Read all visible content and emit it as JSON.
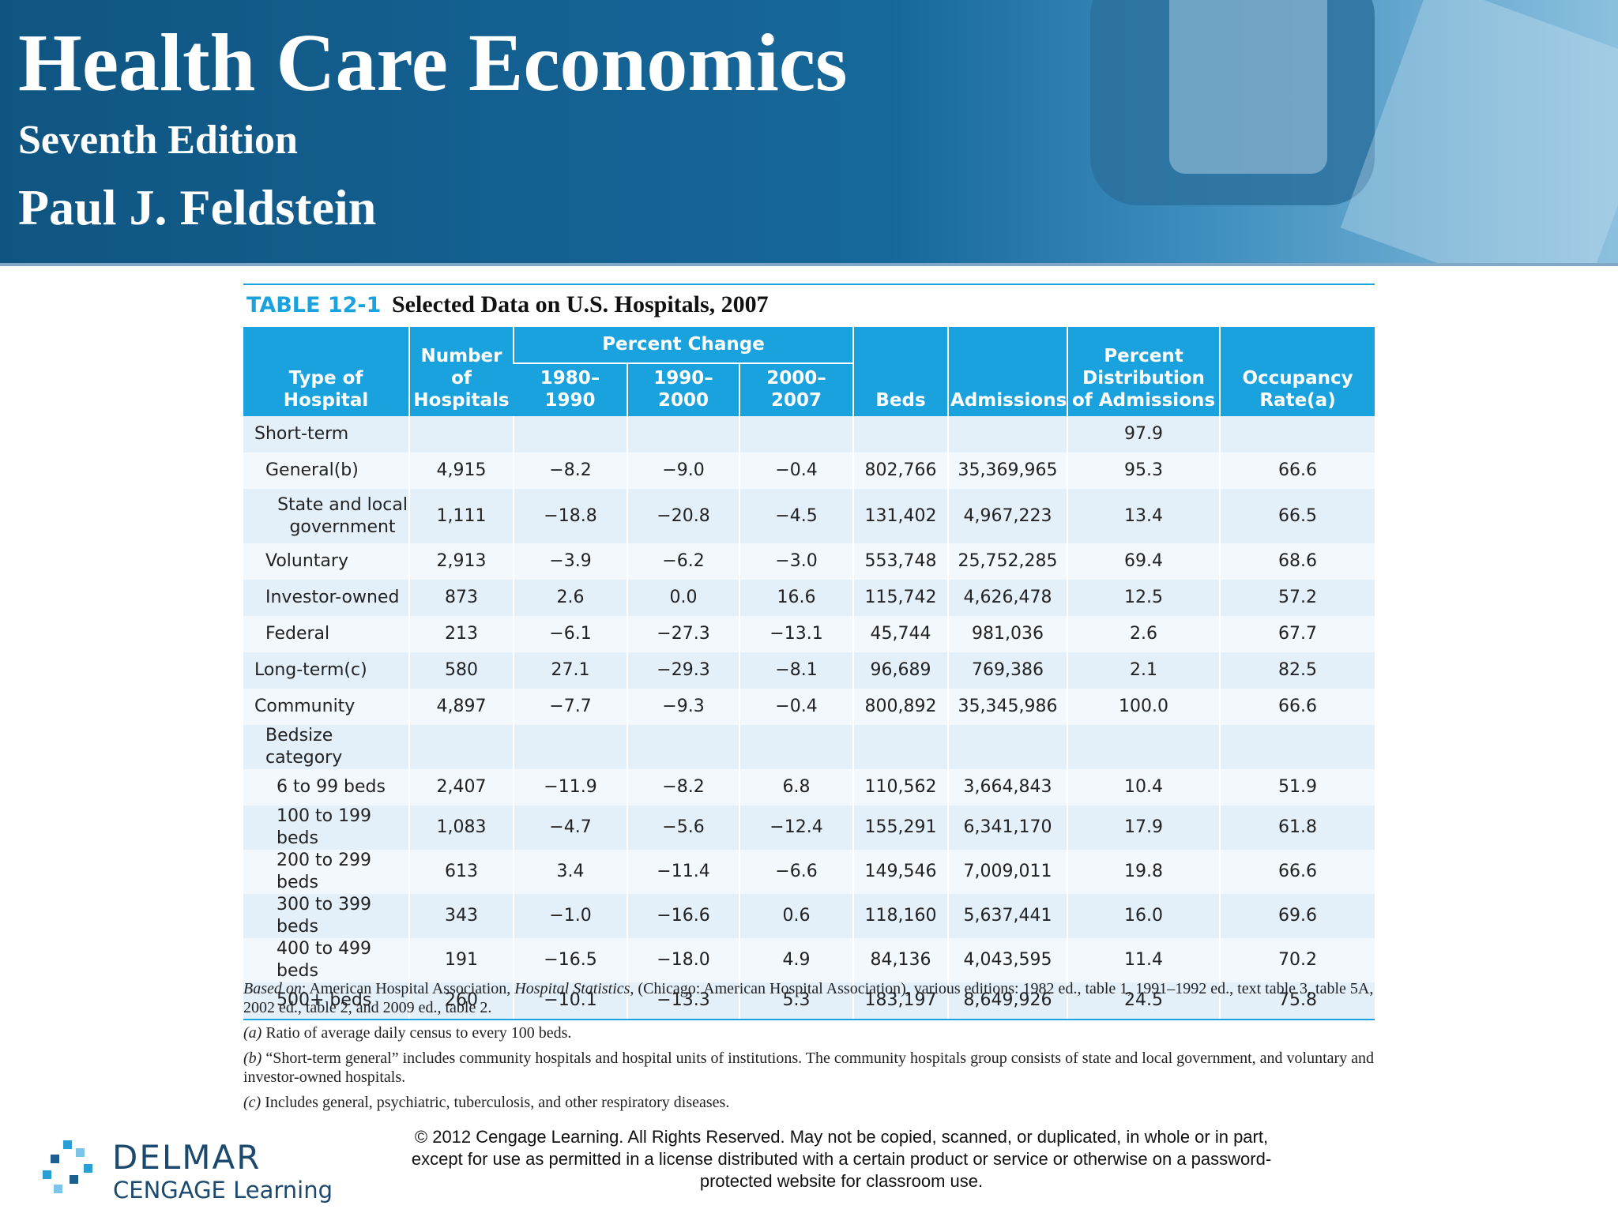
{
  "header": {
    "title": "Health Care Economics",
    "edition": "Seventh Edition",
    "author": "Paul J. Feldstein"
  },
  "table": {
    "label": "TABLE 12-1",
    "caption": "Selected Data on U.S. Hospitals, 2007",
    "columns": {
      "type": "Type of\nHospital",
      "number": "Number\nof\nHospitals",
      "group": "Percent Change",
      "periods": [
        "1980–1990",
        "1990–2000",
        "2000–2007"
      ],
      "beds": "Beds",
      "admissions": "Admissions",
      "distribution": "Percent\nDistribution\nof Admissions",
      "occupancy": "Occupancy\nRate(a)"
    },
    "rows": [
      {
        "label": "Short-term",
        "cells": [
          null,
          null,
          null,
          null,
          null,
          null,
          "97.9",
          null
        ]
      },
      {
        "label": "General(b)",
        "cells": [
          "4,915",
          "−8.2",
          "−9.0",
          "−0.4",
          "802,766",
          "35,369,965",
          "95.3",
          "66.6"
        ]
      },
      {
        "label": "State and local\ngovernment",
        "cells": [
          "1,111",
          "−18.8",
          "−20.8",
          "−4.5",
          "131,402",
          "4,967,223",
          "13.4",
          "66.5"
        ]
      },
      {
        "label": "Voluntary",
        "cells": [
          "2,913",
          "−3.9",
          "−6.2",
          "−3.0",
          "553,748",
          "25,752,285",
          "69.4",
          "68.6"
        ]
      },
      {
        "label": "Investor-owned",
        "cells": [
          "873",
          "2.6",
          "0.0",
          "16.6",
          "115,742",
          "4,626,478",
          "12.5",
          "57.2"
        ]
      },
      {
        "label": "Federal",
        "cells": [
          "213",
          "−6.1",
          "−27.3",
          "−13.1",
          "45,744",
          "981,036",
          "2.6",
          "67.7"
        ]
      },
      {
        "label": "Long-term(c)",
        "cells": [
          "580",
          "27.1",
          "−29.3",
          "−8.1",
          "96,689",
          "769,386",
          "2.1",
          "82.5"
        ]
      },
      {
        "label": "Community",
        "cells": [
          "4,897",
          "−7.7",
          "−9.3",
          "−0.4",
          "800,892",
          "35,345,986",
          "100.0",
          "66.6"
        ]
      },
      {
        "label": "Bedsize category",
        "cells": [
          null,
          null,
          null,
          null,
          null,
          null,
          null,
          null
        ]
      },
      {
        "label": "6 to 99 beds",
        "cells": [
          "2,407",
          "−11.9",
          "−8.2",
          "6.8",
          "110,562",
          "3,664,843",
          "10.4",
          "51.9"
        ]
      },
      {
        "label": "100 to 199 beds",
        "cells": [
          "1,083",
          "−4.7",
          "−5.6",
          "−12.4",
          "155,291",
          "6,341,170",
          "17.9",
          "61.8"
        ]
      },
      {
        "label": "200 to 299 beds",
        "cells": [
          "613",
          "3.4",
          "−11.4",
          "−6.6",
          "149,546",
          "7,009,011",
          "19.8",
          "66.6"
        ]
      },
      {
        "label": "300 to 399 beds",
        "cells": [
          "343",
          "−1.0",
          "−16.6",
          "0.6",
          "118,160",
          "5,637,441",
          "16.0",
          "69.6"
        ]
      },
      {
        "label": "400 to 499 beds",
        "cells": [
          "191",
          "−16.5",
          "−18.0",
          "4.9",
          "84,136",
          "4,043,595",
          "11.4",
          "70.2"
        ]
      },
      {
        "label": "500+ beds",
        "cells": [
          "260",
          "−10.1",
          "−13.3",
          "5.3",
          "183,197",
          "8,649,926",
          "24.5",
          "75.8"
        ]
      }
    ],
    "notes": [
      [
        "Based on",
        ": American Hospital Association, ",
        "Hospital Statistics",
        ", (Chicago: American Hospital Association), various editions: 1982 ed., table 1, 1991–1992 ed., text table 3, table 5A, 2002 ed., table 2, and 2009 ed., table 2."
      ],
      [
        "(a)",
        " Ratio of average daily census to every 100 beds."
      ],
      [
        "(b)",
        " “Short-term general” includes community hospitals and hospital units of institutions. The community hospitals group consists of state and local government, and voluntary and investor-owned hospitals."
      ],
      [
        "(c)",
        " Includes general, psychiatric, tuberculosis, and other respiratory diseases."
      ]
    ]
  },
  "footer": {
    "brand": "DELMAR",
    "sub": "CENGAGE Learning",
    "copyright": "© 2012 Cengage Learning. All Rights Reserved. May not be copied, scanned, or duplicated, in whole or in part,\nexcept for use as permitted in a license distributed with a certain product or service or otherwise on a password-\nprotected website for classroom use."
  }
}
